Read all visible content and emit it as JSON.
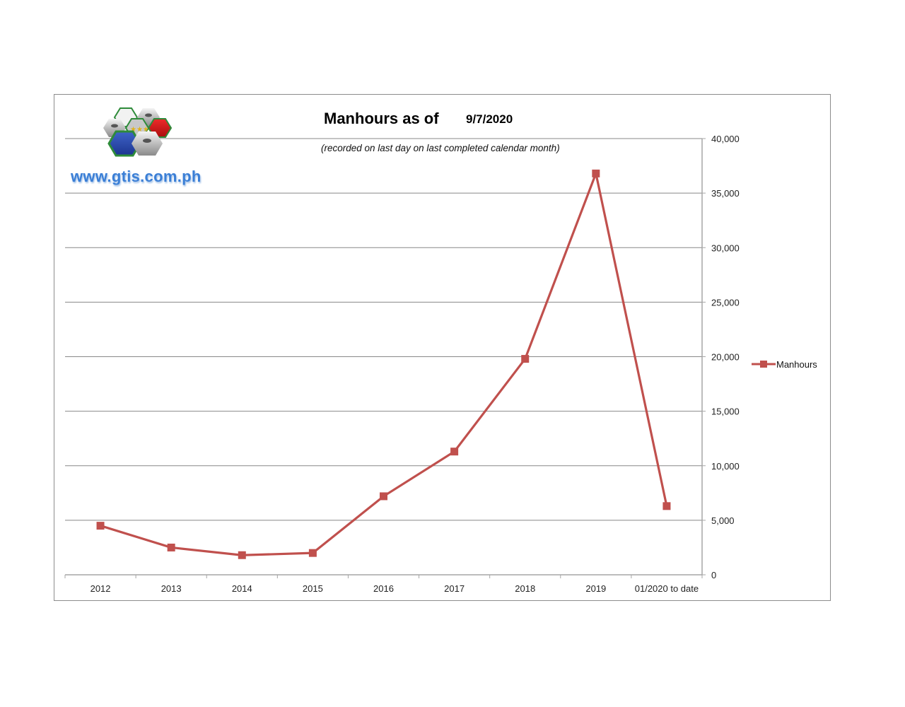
{
  "header": {
    "title": "Manhours as of",
    "date": "9/7/2020",
    "subtitle": "(recorded on last day on last completed calendar month)"
  },
  "logo": {
    "text": "www.gtis.com.ph"
  },
  "legend": {
    "label": "Manhours"
  },
  "colors": {
    "series": "#c0504d",
    "gridline": "#888888",
    "axis": "#a6a6a6"
  },
  "chart_data": {
    "type": "line",
    "title": "Manhours as of 9/7/2020",
    "subtitle": "(recorded on last day on last completed calendar month)",
    "xlabel": "",
    "ylabel": "",
    "categories": [
      "2012",
      "2013",
      "2014",
      "2015",
      "2016",
      "2017",
      "2018",
      "2019",
      "01/2020 to date"
    ],
    "series": [
      {
        "name": "Manhours",
        "values": [
          4500,
          2500,
          1800,
          2000,
          7200,
          11300,
          19800,
          36800,
          6300
        ],
        "color": "#c0504d",
        "marker": "square"
      }
    ],
    "ylim": [
      0,
      40000
    ],
    "yticks": [
      "0",
      "5,000",
      "10,000",
      "15,000",
      "20,000",
      "25,000",
      "30,000",
      "35,000",
      "40,000"
    ],
    "y_axis_position": "right",
    "grid": true,
    "legend_position": "right"
  }
}
